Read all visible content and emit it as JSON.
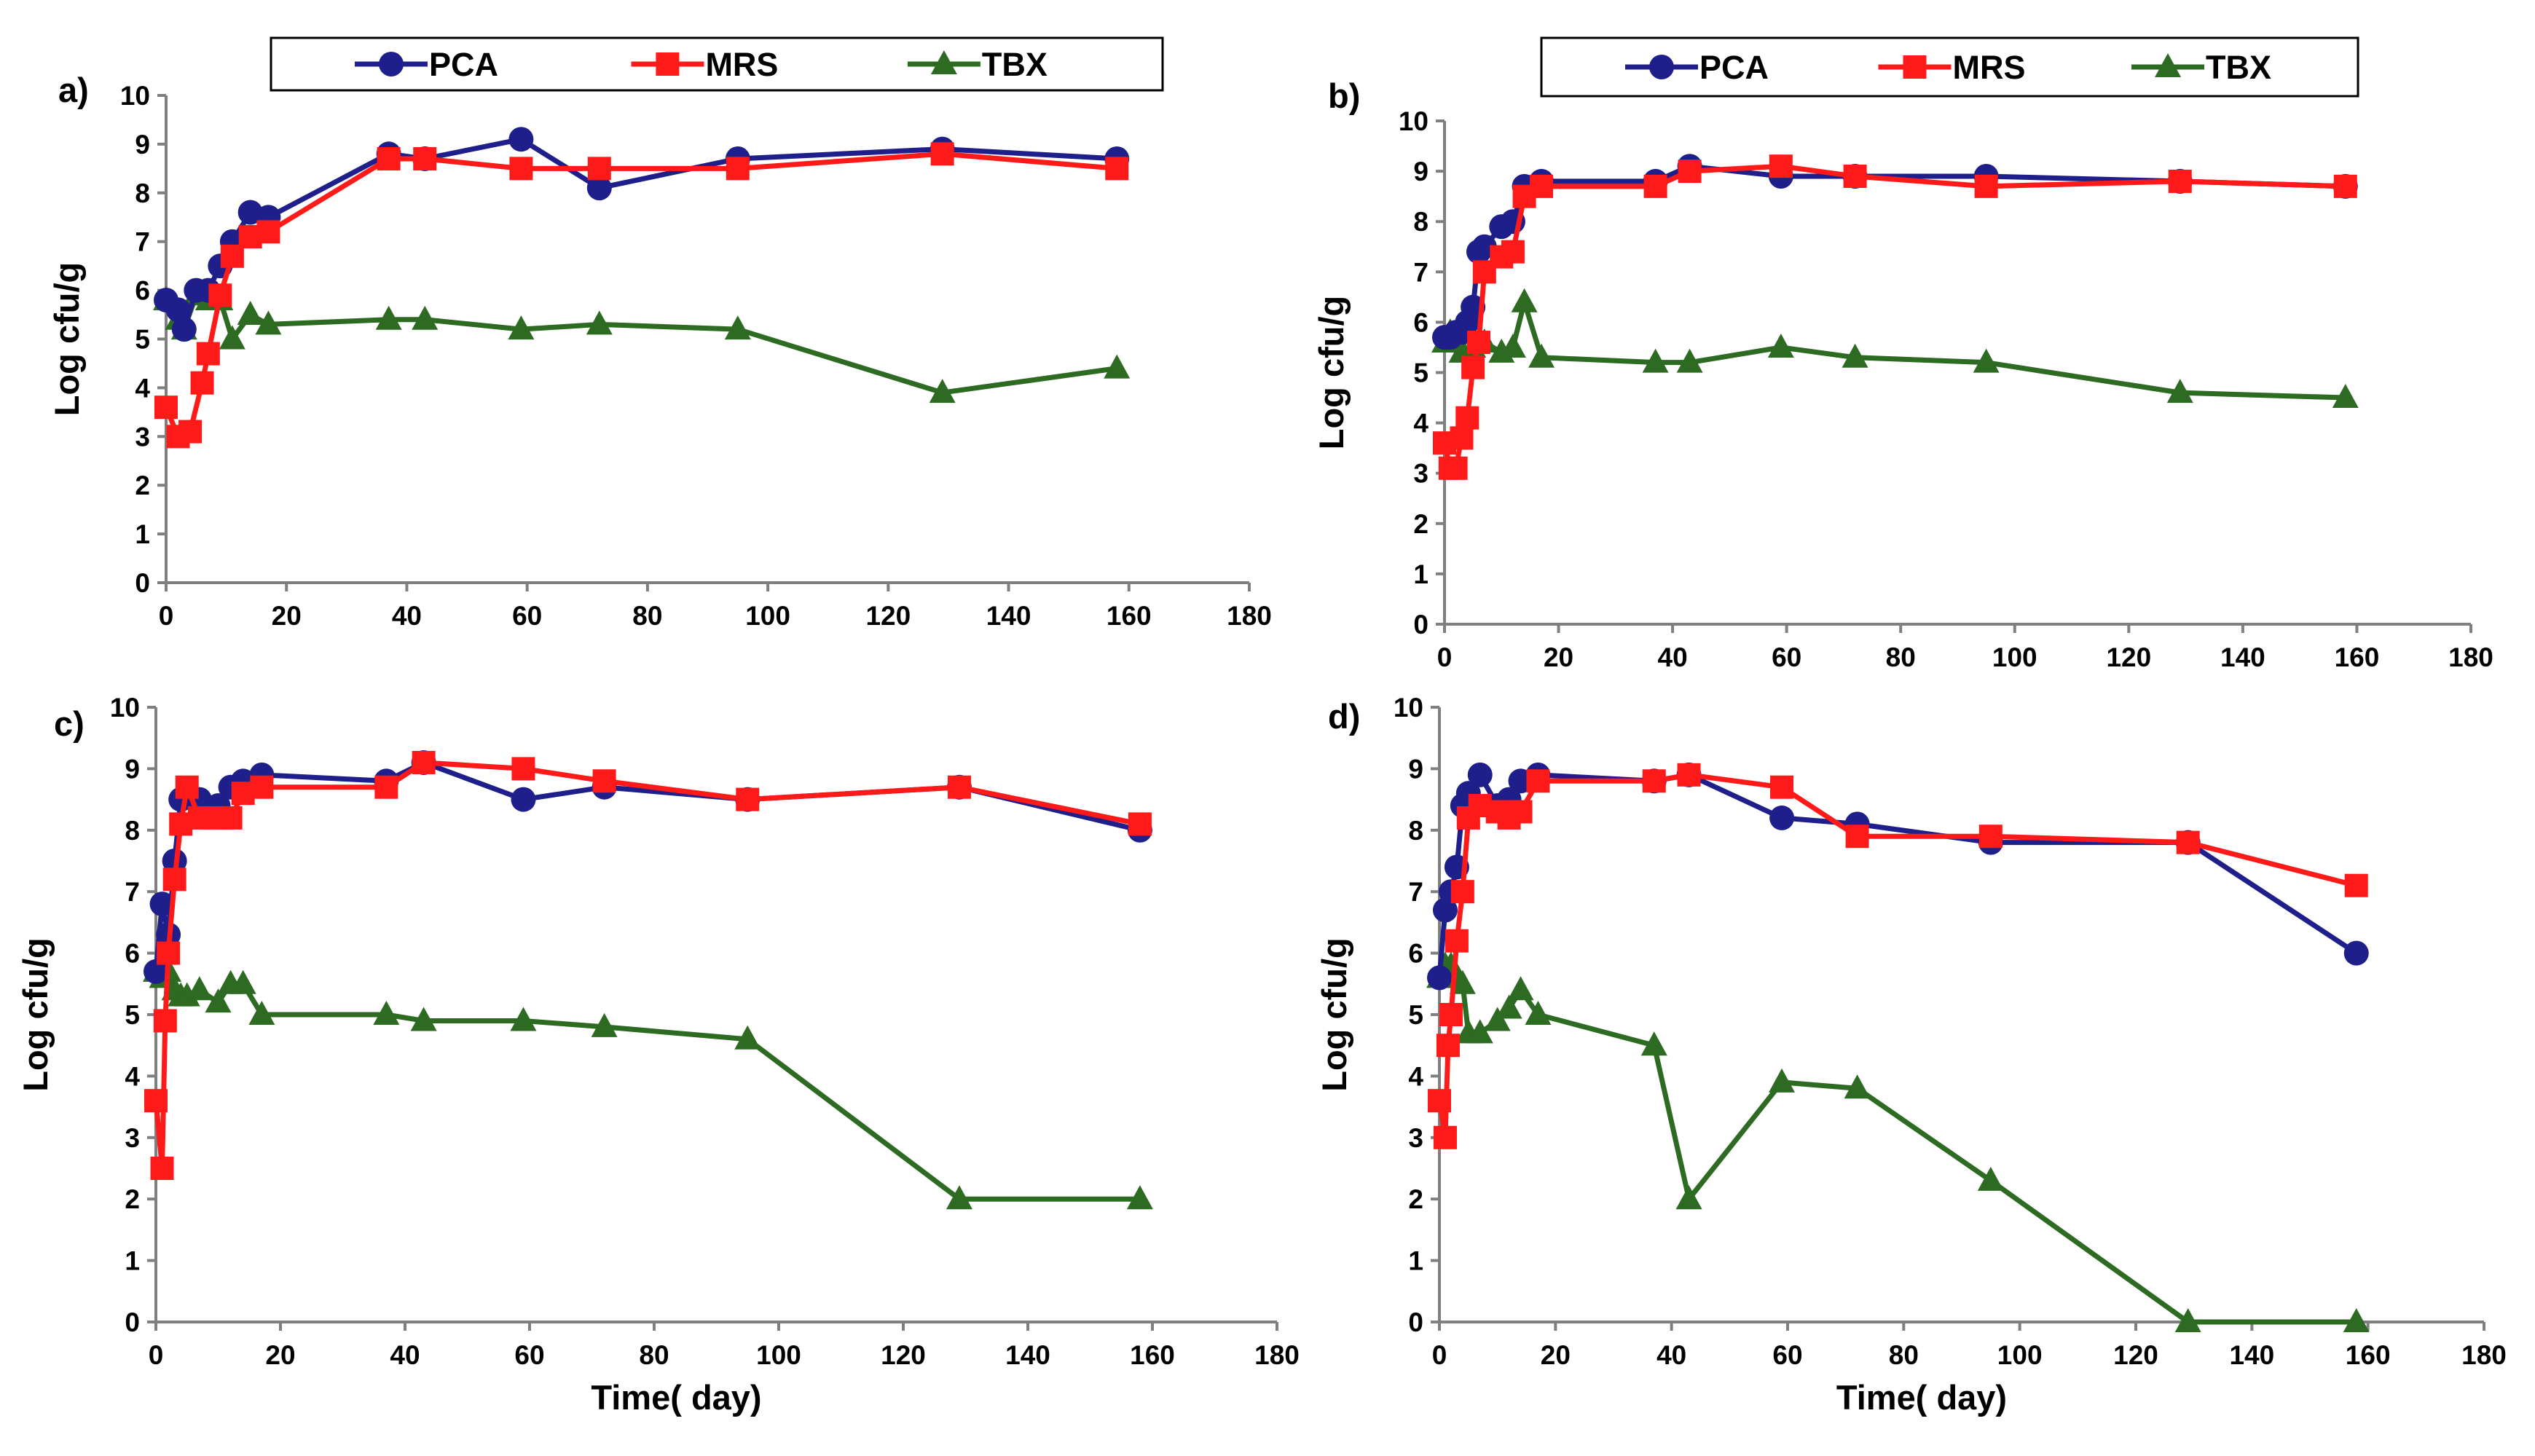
{
  "chart_data": [
    {
      "type": "line",
      "panel_label": "a)",
      "xlabel": "",
      "ylabel": "Log cfu/g",
      "xlim": [
        0,
        180
      ],
      "ylim": [
        0,
        10
      ],
      "xticks": [
        "0",
        "20",
        "40",
        "60",
        "80",
        "100",
        "120",
        "140",
        "160",
        "180"
      ],
      "yticks": [
        "0",
        "1",
        "2",
        "3",
        "4",
        "5",
        "6",
        "7",
        "8",
        "9",
        "10"
      ],
      "legend": [
        "PCA",
        "MRS",
        "TBX"
      ],
      "series": [
        {
          "name": "PCA",
          "x": [
            0,
            2,
            3,
            5,
            7,
            9,
            11,
            14,
            17,
            37,
            43,
            59,
            72,
            95,
            129,
            158
          ],
          "y": [
            5.8,
            5.6,
            5.2,
            6.0,
            6.0,
            6.5,
            7.0,
            7.6,
            7.5,
            8.8,
            8.7,
            9.1,
            8.1,
            8.7,
            8.9,
            8.7
          ]
        },
        {
          "name": "MRS",
          "x": [
            0,
            2,
            4,
            6,
            7,
            9,
            11,
            14,
            17,
            37,
            43,
            59,
            72,
            95,
            129,
            158
          ],
          "y": [
            3.6,
            3.0,
            3.1,
            4.1,
            4.7,
            5.9,
            6.7,
            7.1,
            7.2,
            8.7,
            8.7,
            8.5,
            8.5,
            8.5,
            8.8,
            8.5
          ]
        },
        {
          "name": "TBX",
          "x": [
            0,
            2,
            3,
            5,
            7,
            9,
            11,
            14,
            17,
            37,
            43,
            59,
            72,
            95,
            129,
            158
          ],
          "y": [
            5.8,
            5.4,
            5.2,
            5.9,
            5.8,
            5.8,
            5.0,
            5.5,
            5.3,
            5.4,
            5.4,
            5.2,
            5.3,
            5.2,
            3.9,
            4.4
          ]
        }
      ]
    },
    {
      "type": "line",
      "panel_label": "b)",
      "xlabel": "",
      "ylabel": "Log cfu/g",
      "xlim": [
        0,
        180
      ],
      "ylim": [
        0,
        10
      ],
      "xticks": [
        "0",
        "20",
        "40",
        "60",
        "80",
        "100",
        "120",
        "140",
        "160",
        "180"
      ],
      "yticks": [
        "0",
        "1",
        "2",
        "3",
        "4",
        "5",
        "6",
        "7",
        "8",
        "9",
        "10"
      ],
      "legend": [
        "PCA",
        "MRS",
        "TBX"
      ],
      "series": [
        {
          "name": "PCA",
          "x": [
            0,
            1,
            2,
            3,
            4,
            5,
            6,
            7,
            10,
            12,
            14,
            17,
            37,
            43,
            59,
            72,
            95,
            129,
            158
          ],
          "y": [
            5.7,
            5.7,
            5.8,
            5.8,
            6.0,
            6.3,
            7.4,
            7.5,
            7.9,
            8.0,
            8.7,
            8.8,
            8.8,
            9.1,
            8.9,
            8.9,
            8.9,
            8.8,
            8.7
          ]
        },
        {
          "name": "MRS",
          "x": [
            0,
            1,
            2,
            3,
            4,
            5,
            6,
            7,
            10,
            12,
            14,
            17,
            37,
            43,
            59,
            72,
            95,
            129,
            158
          ],
          "y": [
            3.6,
            3.1,
            3.1,
            3.7,
            4.1,
            5.1,
            5.6,
            7.0,
            7.3,
            7.4,
            8.5,
            8.7,
            8.7,
            9.0,
            9.1,
            8.9,
            8.7,
            8.8,
            8.7
          ]
        },
        {
          "name": "TBX",
          "x": [
            0,
            1,
            2,
            3,
            4,
            5,
            6,
            7,
            10,
            12,
            14,
            17,
            37,
            43,
            59,
            72,
            95,
            129,
            158
          ],
          "y": [
            5.6,
            5.8,
            5.6,
            5.4,
            5.8,
            5.5,
            5.6,
            5.6,
            5.4,
            5.5,
            6.4,
            5.3,
            5.2,
            5.2,
            5.5,
            5.3,
            5.2,
            4.6,
            4.5
          ]
        }
      ]
    },
    {
      "type": "line",
      "panel_label": "c)",
      "xlabel": "Time( day)",
      "ylabel": "Log cfu/g",
      "xlim": [
        0,
        180
      ],
      "ylim": [
        0,
        10
      ],
      "xticks": [
        "0",
        "20",
        "40",
        "60",
        "80",
        "100",
        "120",
        "140",
        "160",
        "180"
      ],
      "yticks": [
        "0",
        "1",
        "2",
        "3",
        "4",
        "5",
        "6",
        "7",
        "8",
        "9",
        "10"
      ],
      "legend": [
        "PCA",
        "MRS",
        "TBX"
      ],
      "series": [
        {
          "name": "PCA",
          "x": [
            0,
            1,
            2,
            3,
            4,
            5,
            7,
            10,
            12,
            14,
            17,
            37,
            43,
            59,
            72,
            95,
            129,
            158
          ],
          "y": [
            5.7,
            6.8,
            6.3,
            7.5,
            8.5,
            8.6,
            8.5,
            8.4,
            8.7,
            8.8,
            8.9,
            8.8,
            9.1,
            8.5,
            8.7,
            8.5,
            8.7,
            8.0
          ]
        },
        {
          "name": "MRS",
          "x": [
            0,
            1,
            1.5,
            2,
            3,
            4,
            5,
            7,
            10,
            12,
            14,
            17,
            37,
            43,
            59,
            72,
            95,
            129,
            158
          ],
          "y": [
            3.6,
            2.5,
            4.9,
            6.0,
            7.2,
            8.1,
            8.7,
            8.2,
            8.2,
            8.2,
            8.6,
            8.7,
            8.7,
            9.1,
            9.0,
            8.8,
            8.5,
            8.7,
            8.1
          ]
        },
        {
          "name": "TBX",
          "x": [
            0,
            1,
            2,
            3,
            4,
            5,
            7,
            10,
            12,
            14,
            17,
            37,
            43,
            59,
            72,
            95,
            129,
            158
          ],
          "y": [
            5.7,
            5.6,
            5.7,
            5.4,
            5.3,
            5.3,
            5.4,
            5.2,
            5.5,
            5.5,
            5.0,
            5.0,
            4.9,
            4.9,
            4.8,
            4.6,
            2.0,
            2.0
          ]
        }
      ]
    },
    {
      "type": "line",
      "panel_label": "d)",
      "xlabel": "Time( day)",
      "ylabel": "Log cfu/g",
      "xlim": [
        0,
        180
      ],
      "ylim": [
        0,
        10
      ],
      "xticks": [
        "0",
        "20",
        "40",
        "60",
        "80",
        "100",
        "120",
        "140",
        "160",
        "180"
      ],
      "yticks": [
        "0",
        "1",
        "2",
        "3",
        "4",
        "5",
        "6",
        "7",
        "8",
        "9",
        "10"
      ],
      "legend": [
        "PCA",
        "MRS",
        "TBX"
      ],
      "series": [
        {
          "name": "PCA",
          "x": [
            0,
            1,
            2,
            3,
            4,
            5,
            7,
            10,
            12,
            14,
            17,
            37,
            43,
            59,
            72,
            95,
            129,
            158
          ],
          "y": [
            5.6,
            6.7,
            7.0,
            7.4,
            8.4,
            8.6,
            8.9,
            8.4,
            8.5,
            8.8,
            8.9,
            8.8,
            8.9,
            8.2,
            8.1,
            7.8,
            7.8,
            6.0
          ]
        },
        {
          "name": "MRS",
          "x": [
            0,
            1,
            1.5,
            2,
            3,
            4,
            5,
            7,
            10,
            12,
            14,
            17,
            37,
            43,
            59,
            72,
            95,
            129,
            158
          ],
          "y": [
            3.6,
            3.0,
            4.5,
            5.0,
            6.2,
            7.0,
            8.2,
            8.4,
            8.3,
            8.2,
            8.3,
            8.8,
            8.8,
            8.9,
            8.7,
            7.9,
            7.9,
            7.8,
            7.1
          ]
        },
        {
          "name": "TBX",
          "x": [
            0,
            1,
            2,
            3,
            4,
            5,
            7,
            10,
            12,
            14,
            17,
            37,
            43,
            59,
            72,
            95,
            129,
            158
          ],
          "y": [
            5.6,
            5.8,
            5.8,
            5.6,
            5.5,
            4.7,
            4.7,
            4.9,
            5.1,
            5.4,
            5.0,
            4.5,
            2.0,
            3.9,
            3.8,
            2.3,
            0.0,
            0.0
          ]
        }
      ]
    }
  ],
  "series_styles": {
    "PCA": {
      "color": "#1f1f8c",
      "marker": "circle"
    },
    "MRS": {
      "color": "#ff1a1a",
      "marker": "square"
    },
    "TBX": {
      "color": "#2d6a22",
      "marker": "triangle"
    }
  }
}
